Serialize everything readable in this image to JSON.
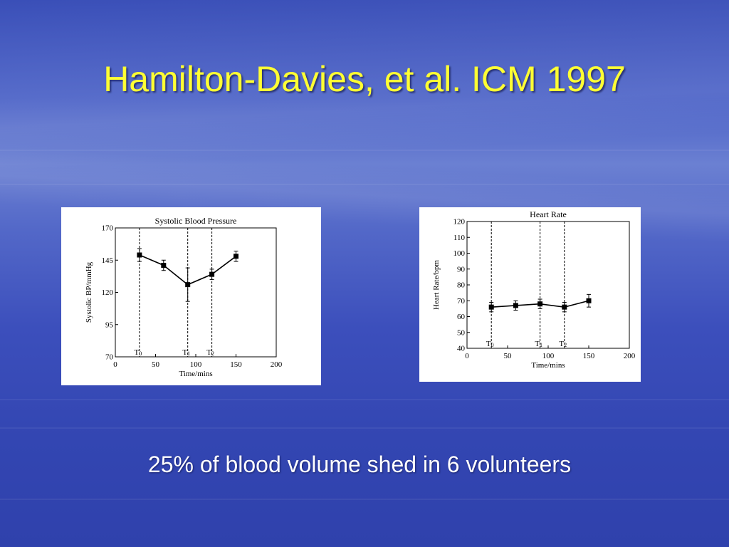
{
  "slide": {
    "title": "Hamilton-Davies, et al. ICM 1997",
    "caption": "25% of blood volume shed in 6 volunteers"
  },
  "colors": {
    "title": "#ffff33",
    "caption": "#ffffff",
    "background": "#3a4fb8",
    "plot_ink": "#000000"
  },
  "chart_data": [
    {
      "type": "line",
      "title": "Systolic Blood Pressure",
      "xlabel": "Time/mins",
      "ylabel": "Systolic BP/mmHg",
      "xlim": [
        0,
        200
      ],
      "ylim": [
        70,
        170
      ],
      "xticks": [
        0,
        50,
        100,
        150,
        200
      ],
      "yticks": [
        70,
        95,
        120,
        145,
        170
      ],
      "grid": false,
      "markers": [
        {
          "label": "T0",
          "x": 30
        },
        {
          "label": "T1",
          "x": 90
        },
        {
          "label": "T2",
          "x": 120
        }
      ],
      "series": [
        {
          "x": [
            30,
            60,
            90,
            120,
            150
          ],
          "y": [
            149,
            141,
            126,
            134,
            148
          ],
          "error": [
            5,
            4,
            13,
            4,
            4
          ]
        }
      ]
    },
    {
      "type": "line",
      "title": "Heart Rate",
      "xlabel": "Time/mins",
      "ylabel": "Heart Rate/bpm",
      "xlim": [
        0,
        200
      ],
      "ylim": [
        40,
        120
      ],
      "xticks": [
        0,
        50,
        100,
        150,
        200
      ],
      "yticks": [
        40,
        50,
        60,
        70,
        80,
        90,
        100,
        110,
        120
      ],
      "grid": false,
      "markers": [
        {
          "label": "T0",
          "x": 30
        },
        {
          "label": "T1",
          "x": 90
        },
        {
          "label": "T2",
          "x": 120
        }
      ],
      "series": [
        {
          "x": [
            30,
            60,
            90,
            120,
            150
          ],
          "y": [
            66,
            67,
            68,
            66,
            70
          ],
          "error": [
            3,
            3,
            3,
            3,
            4
          ]
        }
      ]
    }
  ]
}
